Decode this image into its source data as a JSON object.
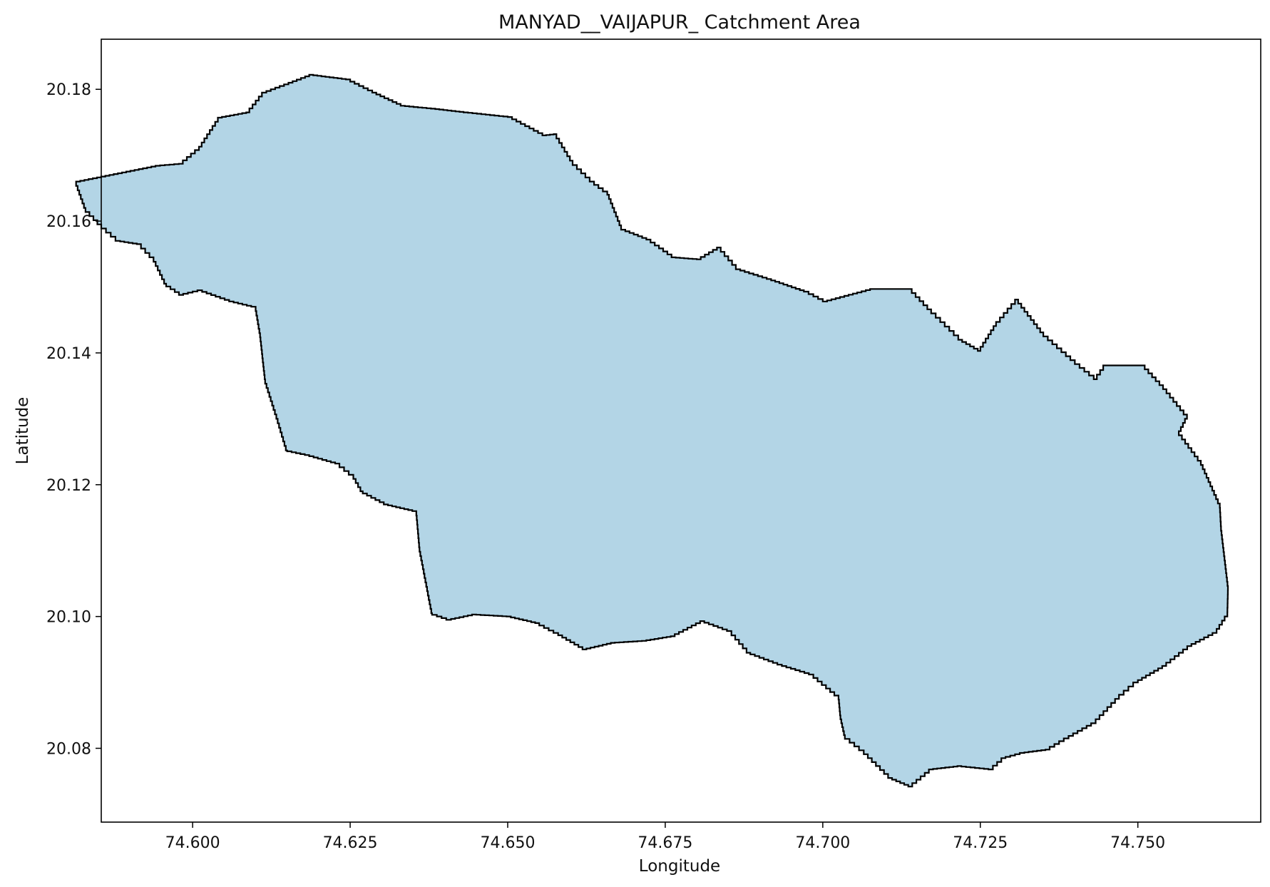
{
  "chart_data": {
    "type": "map",
    "title": "MANYAD__VAIJAPUR_ Catchment Area",
    "xlabel": "Longitude",
    "ylabel": "Latitude",
    "xlim": [
      74.5855,
      74.7695
    ],
    "ylim": [
      20.0688,
      20.1876
    ],
    "x_ticks": [
      74.6,
      74.625,
      74.65,
      74.675,
      74.7,
      74.725,
      74.75
    ],
    "x_tick_labels": [
      "74.600",
      "74.625",
      "74.650",
      "74.675",
      "74.700",
      "74.725",
      "74.750"
    ],
    "y_ticks": [
      20.08,
      20.1,
      20.12,
      20.14,
      20.16,
      20.18
    ],
    "y_tick_labels": [
      "20.08",
      "20.10",
      "20.12",
      "20.14",
      "20.16",
      "20.18"
    ],
    "fill_color": "#b3d5e6",
    "edge_color": "#000000",
    "grid": false,
    "polygon": [
      [
        74.5941,
        20.1684
      ],
      [
        74.5978,
        20.1687
      ],
      [
        74.601,
        20.1713
      ],
      [
        74.604,
        20.1757
      ],
      [
        74.6085,
        20.1765
      ],
      [
        74.611,
        20.1795
      ],
      [
        74.6152,
        20.181
      ],
      [
        74.6185,
        20.1822
      ],
      [
        74.6243,
        20.1815
      ],
      [
        74.6285,
        20.1795
      ],
      [
        74.633,
        20.1775
      ],
      [
        74.6385,
        20.177
      ],
      [
        74.643,
        20.1765
      ],
      [
        74.65,
        20.1758
      ],
      [
        74.6555,
        20.173
      ],
      [
        74.6573,
        20.1732
      ],
      [
        74.6603,
        20.1685
      ],
      [
        74.663,
        20.166
      ],
      [
        74.6658,
        20.164
      ],
      [
        74.668,
        20.1587
      ],
      [
        74.672,
        20.1572
      ],
      [
        74.676,
        20.1545
      ],
      [
        74.68,
        20.1542
      ],
      [
        74.6832,
        20.156
      ],
      [
        74.6862,
        20.1527
      ],
      [
        74.6918,
        20.151
      ],
      [
        74.697,
        20.1493
      ],
      [
        74.7,
        20.1478
      ],
      [
        74.7075,
        20.1497
      ],
      [
        74.7135,
        20.1497
      ],
      [
        74.7172,
        20.146
      ],
      [
        74.7215,
        20.142
      ],
      [
        74.7246,
        20.1403
      ],
      [
        74.7275,
        20.1447
      ],
      [
        74.7305,
        20.1481
      ],
      [
        74.735,
        20.1425
      ],
      [
        74.74,
        20.1383
      ],
      [
        74.743,
        20.136
      ],
      [
        74.7445,
        20.1381
      ],
      [
        74.7505,
        20.1381
      ],
      [
        74.754,
        20.1345
      ],
      [
        74.7578,
        20.13
      ],
      [
        74.7565,
        20.1275
      ],
      [
        74.76,
        20.123
      ],
      [
        74.763,
        20.1165
      ],
      [
        74.7632,
        20.113
      ],
      [
        74.7643,
        20.104
      ],
      [
        74.7642,
        20.1
      ],
      [
        74.7625,
        20.0975
      ],
      [
        74.7585,
        20.0955
      ],
      [
        74.7545,
        20.0925
      ],
      [
        74.75,
        20.09
      ],
      [
        74.747,
        20.0875
      ],
      [
        74.7433,
        20.0838
      ],
      [
        74.739,
        20.0815
      ],
      [
        74.736,
        20.0798
      ],
      [
        74.732,
        20.0793
      ],
      [
        74.729,
        20.0785
      ],
      [
        74.727,
        20.0768
      ],
      [
        74.722,
        20.0773
      ],
      [
        74.7175,
        20.0768
      ],
      [
        74.7142,
        20.0742
      ],
      [
        74.711,
        20.0755
      ],
      [
        74.7065,
        20.0797
      ],
      [
        74.7035,
        20.082
      ],
      [
        74.7028,
        20.085
      ],
      [
        74.7025,
        20.088
      ],
      [
        74.6985,
        20.0912
      ],
      [
        74.6935,
        20.0927
      ],
      [
        74.6885,
        20.0945
      ],
      [
        74.6855,
        20.0978
      ],
      [
        74.6812,
        20.0993
      ],
      [
        74.6765,
        20.097
      ],
      [
        74.672,
        20.0963
      ],
      [
        74.667,
        20.096
      ],
      [
        74.6625,
        20.095
      ],
      [
        74.658,
        20.0975
      ],
      [
        74.655,
        20.099
      ],
      [
        74.6505,
        20.1
      ],
      [
        74.645,
        20.1003
      ],
      [
        74.641,
        20.0995
      ],
      [
        74.638,
        20.1005
      ],
      [
        74.6368,
        20.1065
      ],
      [
        74.636,
        20.1105
      ],
      [
        74.6355,
        20.116
      ],
      [
        74.631,
        20.117
      ],
      [
        74.627,
        20.119
      ],
      [
        74.6255,
        20.1215
      ],
      [
        74.6233,
        20.1232
      ],
      [
        74.6185,
        20.1245
      ],
      [
        74.615,
        20.1252
      ],
      [
        74.6135,
        20.13
      ],
      [
        74.6115,
        20.136
      ],
      [
        74.6107,
        20.143
      ],
      [
        74.61,
        20.147
      ],
      [
        74.6065,
        20.1478
      ],
      [
        74.6015,
        20.1495
      ],
      [
        74.5985,
        20.1488
      ],
      [
        74.5958,
        20.1505
      ],
      [
        74.5938,
        20.1545
      ],
      [
        74.5918,
        20.1565
      ],
      [
        74.5885,
        20.157
      ],
      [
        74.5855,
        20.1595
      ],
      [
        74.583,
        20.162
      ],
      [
        74.5815,
        20.166
      ]
    ]
  }
}
